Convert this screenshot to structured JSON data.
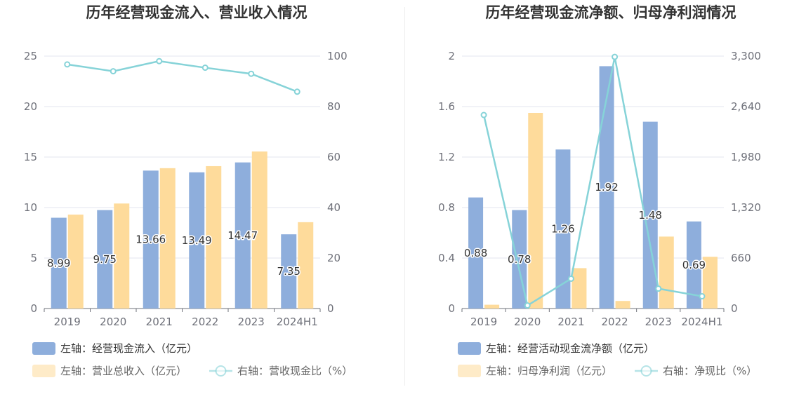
{
  "chart_data": [
    {
      "type": "bar+line",
      "title": "历年经营现金流入、营业收入情况",
      "categories": [
        "2019",
        "2020",
        "2021",
        "2022",
        "2023",
        "2024H1"
      ],
      "left_axis": {
        "min": 0,
        "max": 25,
        "ticks": [
          0,
          5,
          10,
          15,
          20,
          25
        ],
        "tick_labels": [
          "0",
          "5",
          "10",
          "15",
          "20",
          "25"
        ]
      },
      "right_axis": {
        "min": 0,
        "max": 100,
        "ticks": [
          0,
          20,
          40,
          60,
          80,
          100
        ],
        "tick_labels": [
          "0",
          "20",
          "40",
          "60",
          "80",
          "100"
        ]
      },
      "series": [
        {
          "name": "经营现金流入",
          "legend": "左轴：经营现金流入（亿元）",
          "kind": "bar",
          "axis": "left",
          "color": "#8eaedc",
          "values": [
            8.99,
            9.75,
            13.66,
            13.49,
            14.47,
            7.35
          ],
          "labels": [
            "8.99",
            "9.75",
            "13.66",
            "13.49",
            "14.47",
            "7.35"
          ]
        },
        {
          "name": "营业总收入",
          "legend": "左轴：营业总收入（亿元）",
          "kind": "bar",
          "axis": "left",
          "color": "#fedb9b",
          "values": [
            9.3,
            10.4,
            13.9,
            14.1,
            15.55,
            8.55
          ]
        },
        {
          "name": "营收现金比",
          "legend": "右轴：营收现金比（%）",
          "kind": "line",
          "axis": "right",
          "color": "#86d3d8",
          "values": [
            96.7,
            94.0,
            98.0,
            95.4,
            93.0,
            85.9
          ]
        }
      ]
    },
    {
      "type": "bar+line",
      "title": "历年经营现金流净额、归母净利润情况",
      "categories": [
        "2019",
        "2020",
        "2021",
        "2022",
        "2023",
        "2024H1"
      ],
      "left_axis": {
        "min": 0,
        "max": 2,
        "ticks": [
          0,
          0.4,
          0.8,
          1.2,
          1.6,
          2
        ],
        "tick_labels": [
          "0",
          "0.4",
          "0.8",
          "1.2",
          "1.6",
          "2"
        ]
      },
      "right_axis": {
        "min": 0,
        "max": 3300,
        "ticks": [
          0,
          660,
          1320,
          1980,
          2640,
          3300
        ],
        "tick_labels": [
          "0",
          "660",
          "1,320",
          "1,980",
          "2,640",
          "3,300"
        ]
      },
      "series": [
        {
          "name": "经营活动现金流净额",
          "legend": "左轴：经营活动现金流净额（亿元）",
          "kind": "bar",
          "axis": "left",
          "color": "#8eaedc",
          "values": [
            0.88,
            0.78,
            1.26,
            1.92,
            1.48,
            0.69
          ],
          "labels": [
            "0.88",
            "0.78",
            "1.26",
            "1.92",
            "1.48",
            "0.69"
          ]
        },
        {
          "name": "归母净利润",
          "legend": "左轴：归母净利润（亿元）",
          "kind": "bar",
          "axis": "left",
          "color": "#fedb9b",
          "values": [
            0.03,
            1.55,
            0.32,
            0.06,
            0.57,
            0.41
          ]
        },
        {
          "name": "净现比",
          "legend": "右轴：净现比（%）",
          "kind": "line",
          "axis": "right",
          "color": "#86d3d8",
          "values": [
            2530,
            40,
            390,
            3290,
            260,
            160
          ]
        }
      ]
    }
  ]
}
